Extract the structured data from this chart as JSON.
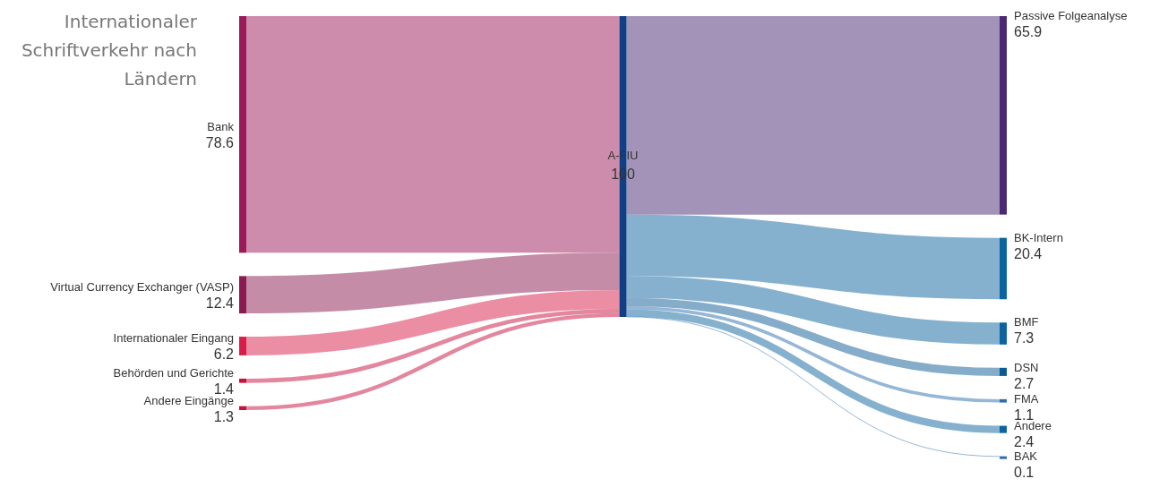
{
  "chart_data": {
    "type": "other",
    "title": "Internationaler Schriftverkehr nach Ländern",
    "categories": [
      "Bank",
      "Virtual Currency Exchanger (VASP)",
      "Internationaler Eingang",
      "Behörden und Gerichte",
      "Andere Eingänge",
      "A-FIU",
      "Passive Folgeanalyse",
      "BK-Intern",
      "BMF",
      "DSN",
      "FMA",
      "Andere",
      "BAK"
    ],
    "values": [
      78.6,
      12.4,
      6.2,
      1.4,
      1.3,
      100,
      65.9,
      20.4,
      7.3,
      2.7,
      1.1,
      2.4,
      0.1
    ],
    "colors": [
      "#9b1a5a",
      "#8a1a50",
      "#d81d4a",
      "#c8103e",
      "#c8103e",
      "#0f3f85",
      "#4a2874",
      "#0b64a0",
      "#0b64a0",
      "#0b5a94",
      "#2b6fb0",
      "#0b64a0",
      "#2b6fb0"
    ],
    "data_labels": true
  }
}
